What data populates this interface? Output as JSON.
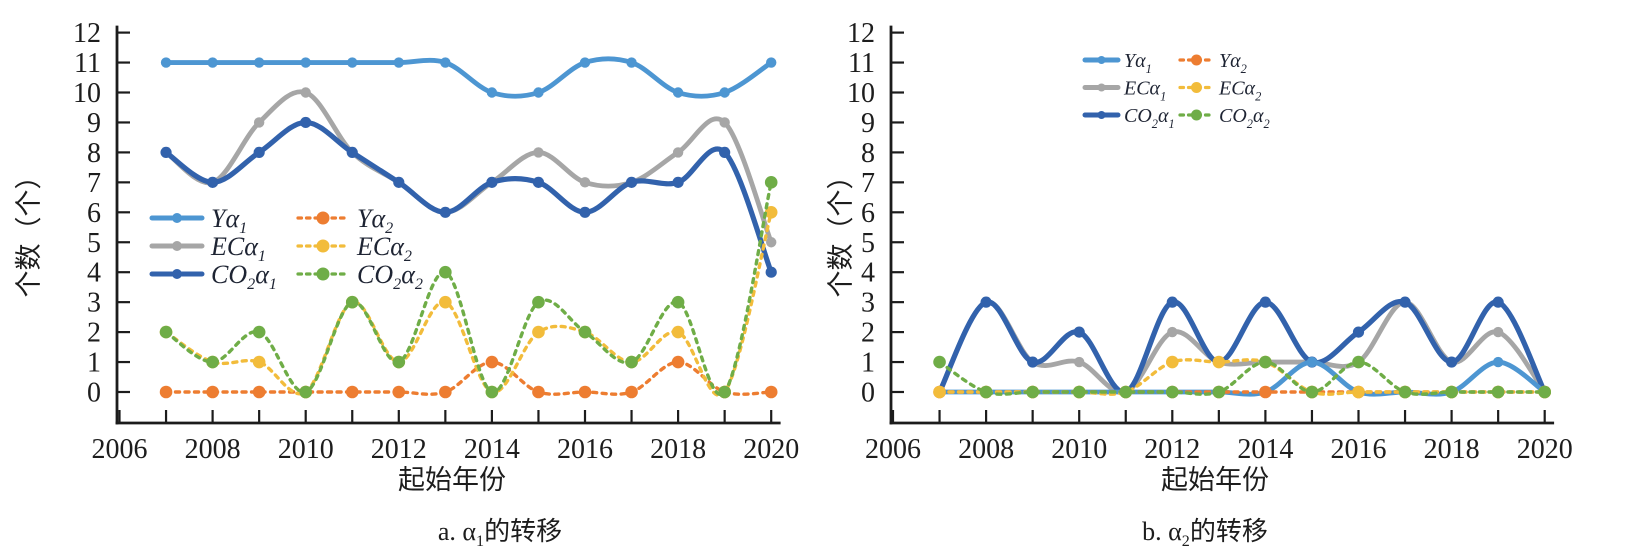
{
  "figure": {
    "background": "#ffffff",
    "captions": [
      {
        "parts": [
          {
            "t": "a. α"
          },
          {
            "t": "1",
            "sub": true
          },
          {
            "t": "的转移"
          }
        ]
      },
      {
        "parts": [
          {
            "t": "b. α"
          },
          {
            "t": "2",
            "sub": true
          },
          {
            "t": "的转移"
          }
        ]
      }
    ]
  },
  "chart_data": [
    {
      "type": "line",
      "title": "a. α₁的转移",
      "xlabel": "起始年份",
      "ylabel": "个数（个）",
      "x": [
        2007,
        2008,
        2009,
        2010,
        2011,
        2012,
        2013,
        2014,
        2015,
        2016,
        2017,
        2018,
        2019,
        2020
      ],
      "xlim": [
        2006,
        2020
      ],
      "ylim": [
        0,
        12
      ],
      "yticks": [
        0,
        1,
        2,
        3,
        4,
        5,
        6,
        7,
        8,
        9,
        10,
        11,
        12
      ],
      "xtick_labels": [
        2006,
        2008,
        2010,
        2012,
        2014,
        2016,
        2018,
        2020
      ],
      "grid": false,
      "legend_position": "inside-middle-left",
      "series": [
        {
          "name": "Yα₁",
          "label_parts": [
            {
              "t": "Yα"
            },
            {
              "t": "1",
              "sub": true
            }
          ],
          "color": "#4D96D2",
          "line": "solid",
          "values": [
            11,
            11,
            11,
            11,
            11,
            11,
            11,
            10,
            10,
            11,
            11,
            10,
            10,
            11
          ]
        },
        {
          "name": "ECα₁",
          "label_parts": [
            {
              "t": "ECα"
            },
            {
              "t": "1",
              "sub": true
            }
          ],
          "color": "#A6A6A6",
          "line": "solid",
          "values": [
            8,
            7,
            9,
            10,
            8,
            7,
            6,
            7,
            8,
            7,
            7,
            8,
            9,
            5
          ]
        },
        {
          "name": "CO₂α₁",
          "label_parts": [
            {
              "t": "CO"
            },
            {
              "t": "2",
              "sub": true
            },
            {
              "t": "α"
            },
            {
              "t": "1",
              "sub": true
            }
          ],
          "color": "#3262AC",
          "line": "solid",
          "values": [
            8,
            7,
            8,
            9,
            8,
            7,
            6,
            7,
            7,
            6,
            7,
            7,
            8,
            4
          ]
        },
        {
          "name": "Yα₂",
          "label_parts": [
            {
              "t": "Yα"
            },
            {
              "t": "2",
              "sub": true
            }
          ],
          "color": "#ED7D31",
          "line": "dashed",
          "values": [
            0,
            0,
            0,
            0,
            0,
            0,
            0,
            1,
            0,
            0,
            0,
            1,
            0,
            0
          ]
        },
        {
          "name": "ECα₂",
          "label_parts": [
            {
              "t": "ECα"
            },
            {
              "t": "2",
              "sub": true
            }
          ],
          "color": "#F2BC3B",
          "line": "dashed",
          "values": [
            2,
            1,
            1,
            0,
            3,
            1,
            3,
            0,
            2,
            2,
            1,
            2,
            0,
            6
          ]
        },
        {
          "name": "CO₂α₂",
          "label_parts": [
            {
              "t": "CO"
            },
            {
              "t": "2",
              "sub": true
            },
            {
              "t": "α"
            },
            {
              "t": "2",
              "sub": true
            }
          ],
          "color": "#6FAD47",
          "line": "dashed",
          "values": [
            2,
            1,
            2,
            0,
            3,
            1,
            4,
            0,
            3,
            2,
            1,
            3,
            0,
            7
          ]
        }
      ]
    },
    {
      "type": "line",
      "title": "b. α₂的转移",
      "xlabel": "起始年份",
      "ylabel": "个数（个）",
      "x": [
        2007,
        2008,
        2009,
        2010,
        2011,
        2012,
        2013,
        2014,
        2015,
        2016,
        2017,
        2018,
        2019,
        2020
      ],
      "xlim": [
        2006,
        2020
      ],
      "ylim": [
        0,
        12
      ],
      "yticks": [
        0,
        1,
        2,
        3,
        4,
        5,
        6,
        7,
        8,
        9,
        10,
        11,
        12
      ],
      "xtick_labels": [
        2006,
        2008,
        2010,
        2012,
        2014,
        2016,
        2018,
        2020
      ],
      "grid": false,
      "legend_position": "inside-top-right",
      "series": [
        {
          "name": "Yα₁",
          "label_parts": [
            {
              "t": "Yα"
            },
            {
              "t": "1",
              "sub": true
            }
          ],
          "color": "#4D96D2",
          "line": "solid",
          "values": [
            0,
            0,
            0,
            0,
            0,
            0,
            0,
            0,
            1,
            0,
            0,
            0,
            1,
            0
          ]
        },
        {
          "name": "ECα₁",
          "label_parts": [
            {
              "t": "ECα"
            },
            {
              "t": "1",
              "sub": true
            }
          ],
          "color": "#A6A6A6",
          "line": "solid",
          "values": [
            0,
            3,
            1,
            1,
            0,
            2,
            1,
            1,
            1,
            1,
            3,
            1,
            2,
            0
          ]
        },
        {
          "name": "CO₂α₁",
          "label_parts": [
            {
              "t": "CO"
            },
            {
              "t": "2",
              "sub": true
            },
            {
              "t": "α"
            },
            {
              "t": "1",
              "sub": true
            }
          ],
          "color": "#3262AC",
          "line": "solid",
          "values": [
            0,
            3,
            1,
            2,
            0,
            3,
            1,
            3,
            1,
            2,
            3,
            1,
            3,
            0
          ]
        },
        {
          "name": "Yα₂",
          "label_parts": [
            {
              "t": "Yα"
            },
            {
              "t": "2",
              "sub": true
            }
          ],
          "color": "#ED7D31",
          "line": "dashed",
          "values": [
            0,
            0,
            0,
            0,
            0,
            0,
            0,
            0,
            0,
            0,
            0,
            0,
            0,
            0
          ]
        },
        {
          "name": "ECα₂",
          "label_parts": [
            {
              "t": "ECα"
            },
            {
              "t": "2",
              "sub": true
            }
          ],
          "color": "#F2BC3B",
          "line": "dashed",
          "values": [
            0,
            0,
            0,
            0,
            0,
            1,
            1,
            1,
            0,
            0,
            0,
            0,
            0,
            0
          ]
        },
        {
          "name": "CO₂α₂",
          "label_parts": [
            {
              "t": "CO"
            },
            {
              "t": "2",
              "sub": true
            },
            {
              "t": "α"
            },
            {
              "t": "2",
              "sub": true
            }
          ],
          "color": "#6FAD47",
          "line": "dashed",
          "values": [
            1,
            0,
            0,
            0,
            0,
            0,
            0,
            1,
            0,
            1,
            0,
            0,
            0,
            0
          ]
        }
      ]
    }
  ]
}
